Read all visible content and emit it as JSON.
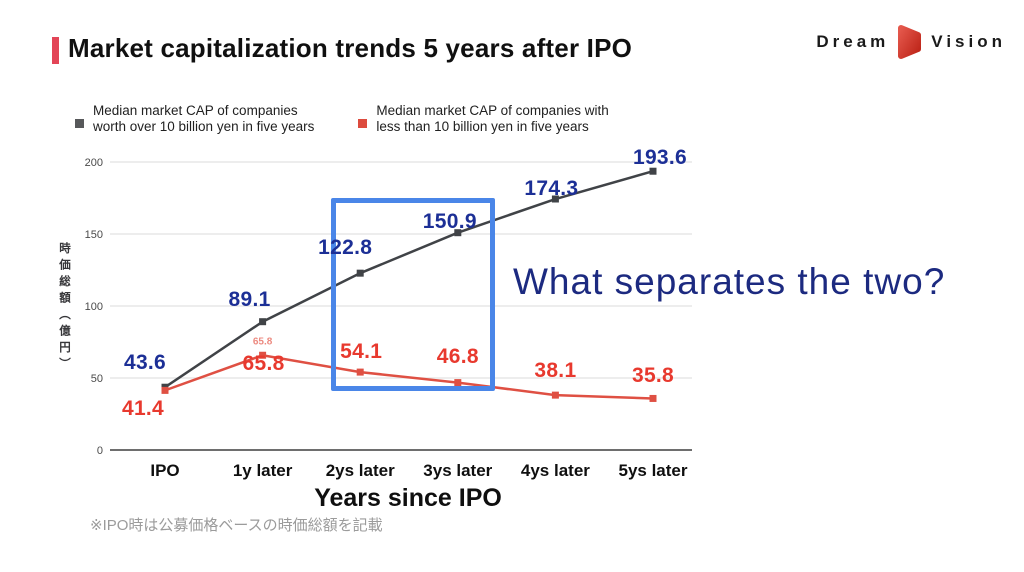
{
  "slide": {
    "title": "Market capitalization trends 5 years after IPO",
    "logo": {
      "left": "Dream",
      "right": "Vision",
      "mark_color": "#d23325"
    },
    "question": "What separates the two?",
    "footnote": "※IPO時は公募価格ベースの時価総額を記載"
  },
  "legend": {
    "items": [
      {
        "line1": "Median market CAP of companies",
        "line2": "worth over 10 billion yen in five years",
        "color": "#57585a"
      },
      {
        "line1": "Median market CAP of companies with",
        "line2": "less than 10 billion yen in five years",
        "color": "#dd4b3e"
      }
    ]
  },
  "chart_data": {
    "type": "line",
    "title": "",
    "categories": [
      "IPO",
      "1y later",
      "2ys later",
      "3ys later",
      "4ys later",
      "5ys later"
    ],
    "series": [
      {
        "name": "Median market CAP of companies worth over 10 billion yen in five years",
        "values": [
          43.6,
          89.1,
          122.8,
          150.9,
          174.3,
          193.6
        ],
        "line_color": "#404347",
        "label_color": "#1c2f96"
      },
      {
        "name": "Median market CAP of companies with less than 10 billion yen in five years",
        "values": [
          41.4,
          65.8,
          54.1,
          46.8,
          38.1,
          35.8
        ],
        "line_color": "#df5043",
        "label_color": "#e8392e"
      }
    ],
    "extra_point_label": {
      "series": 1,
      "index": 1,
      "text": "65.8",
      "color": "#ec8a80"
    },
    "xlabel": "Years since IPO",
    "ylabel": "時価総額（億円）",
    "ylim": [
      0,
      200
    ],
    "yticks": [
      0,
      50,
      100,
      150,
      200
    ],
    "grid": true,
    "legend_position": "top",
    "highlight_color": "#4a86e8",
    "highlighted_categories": [
      "2ys later",
      "3ys later"
    ]
  }
}
